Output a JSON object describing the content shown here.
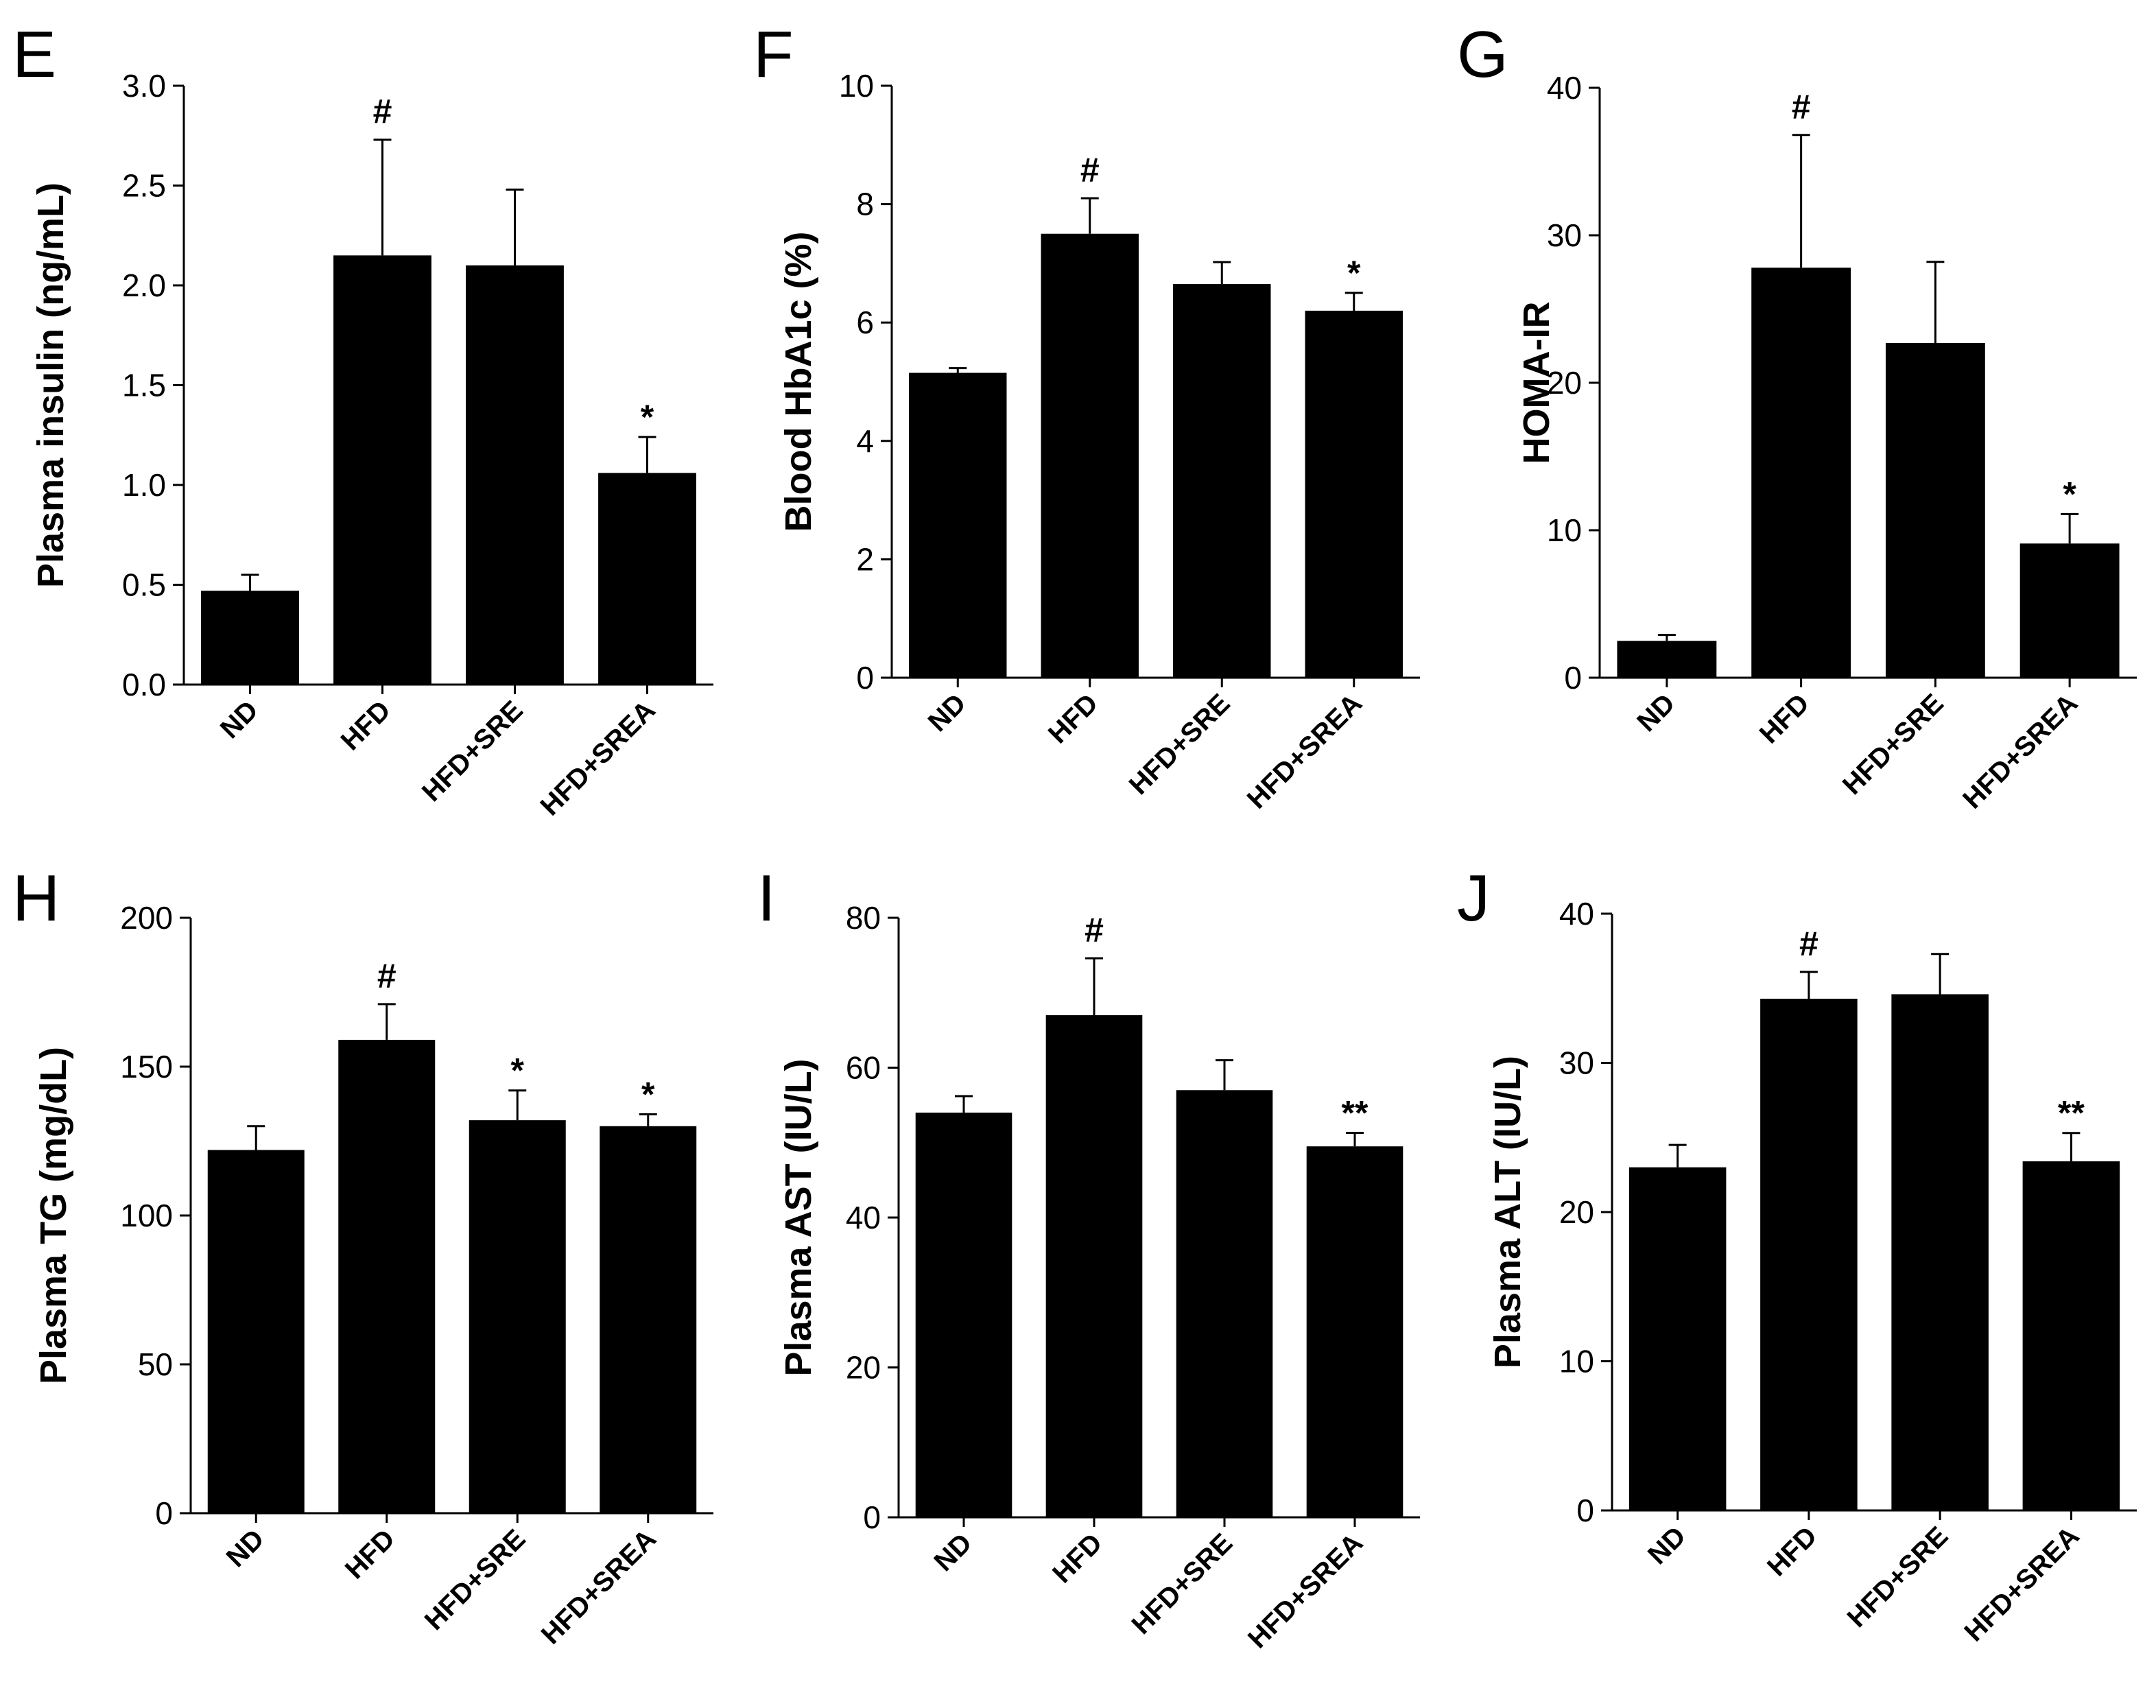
{
  "chart_data": [
    {
      "type": "bar",
      "panel": "E",
      "categories": [
        "ND",
        "HFD",
        "HFD+SRE",
        "HFD+SREA"
      ],
      "values": [
        0.47,
        2.15,
        2.1,
        1.06
      ],
      "errors": [
        0.08,
        0.58,
        0.38,
        0.18
      ],
      "significance": [
        "",
        "#",
        "",
        "*"
      ],
      "ylabel": "Plasma insulin (ng/mL)",
      "ylim": [
        0,
        3.0
      ],
      "yticks": [
        "0.0",
        "0.5",
        "1.0",
        "1.5",
        "2.0",
        "2.5",
        "3.0"
      ]
    },
    {
      "type": "bar",
      "panel": "F",
      "categories": [
        "ND",
        "HFD",
        "HFD+SRE",
        "HFD+SREA"
      ],
      "values": [
        5.15,
        7.5,
        6.65,
        6.2
      ],
      "errors": [
        0.08,
        0.6,
        0.37,
        0.3
      ],
      "significance": [
        "",
        "#",
        "",
        "*"
      ],
      "ylabel": "Blood HbA1c (%)",
      "ylim": [
        0,
        10
      ],
      "yticks": [
        "0",
        "2",
        "4",
        "6",
        "8",
        "10"
      ]
    },
    {
      "type": "bar",
      "panel": "G",
      "categories": [
        "ND",
        "HFD",
        "HFD+SRE",
        "HFD+SREA"
      ],
      "values": [
        2.5,
        27.8,
        22.7,
        9.1
      ],
      "errors": [
        0.4,
        9.0,
        5.5,
        2.0
      ],
      "significance": [
        "",
        "#",
        "",
        "*"
      ],
      "ylabel": "HOMA-IR",
      "ylim": [
        0,
        40
      ],
      "yticks": [
        "0",
        "10",
        "20",
        "30",
        "40"
      ]
    },
    {
      "type": "bar",
      "panel": "H",
      "categories": [
        "ND",
        "HFD",
        "HFD+SRE",
        "HFD+SREA"
      ],
      "values": [
        122,
        159,
        132,
        130
      ],
      "errors": [
        8,
        12,
        10,
        4
      ],
      "significance": [
        "",
        "#",
        "*",
        "*"
      ],
      "ylabel": "Plasma TG (mg/dL)",
      "ylim": [
        0,
        200
      ],
      "yticks": [
        "0",
        "50",
        "100",
        "150",
        "200"
      ]
    },
    {
      "type": "bar",
      "panel": "I",
      "categories": [
        "ND",
        "HFD",
        "HFD+SRE",
        "HFD+SREA"
      ],
      "values": [
        54,
        67,
        57,
        49.5
      ],
      "errors": [
        2.2,
        7.6,
        4.0,
        1.8
      ],
      "significance": [
        "",
        "#",
        "",
        "**"
      ],
      "ylabel": "Plasma AST (IU/L)",
      "ylim": [
        0,
        80
      ],
      "yticks": [
        "0",
        "20",
        "40",
        "60",
        "80"
      ]
    },
    {
      "type": "bar",
      "panel": "J",
      "categories": [
        "ND",
        "HFD",
        "HFD+SRE",
        "HFD+SREA"
      ],
      "values": [
        23,
        34.3,
        34.6,
        23.4
      ],
      "errors": [
        1.5,
        1.8,
        2.7,
        1.9
      ],
      "significance": [
        "",
        "#",
        "",
        "**"
      ],
      "ylabel": "Plasma ALT (IU/L)",
      "ylim": [
        0,
        40
      ],
      "yticks": [
        "0",
        "10",
        "20",
        "30",
        "40"
      ]
    }
  ]
}
